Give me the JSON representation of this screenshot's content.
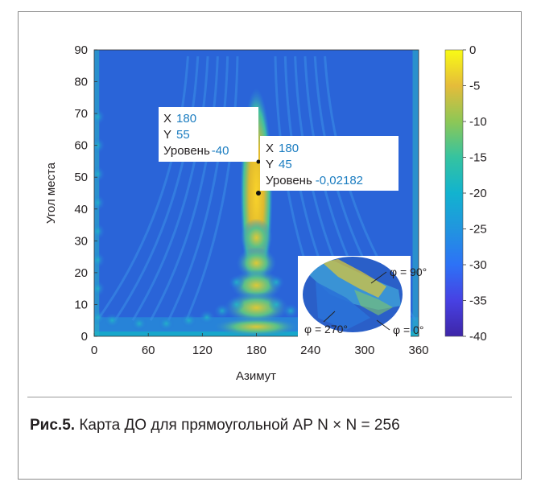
{
  "chart_data": {
    "type": "heatmap",
    "xlabel": "Азимут",
    "ylabel": "Угол места",
    "xlim": [
      0,
      360
    ],
    "ylim": [
      0,
      90
    ],
    "x_ticks": [
      0,
      60,
      120,
      180,
      240,
      300,
      360
    ],
    "y_ticks": [
      0,
      10,
      20,
      30,
      40,
      50,
      60,
      70,
      80,
      90
    ],
    "colorbar": {
      "range": [
        -40,
        0
      ],
      "ticks": [
        0,
        -5,
        -10,
        -15,
        -20,
        -25,
        -30,
        -35,
        -40
      ],
      "colormap": "parula"
    },
    "main_lobe": {
      "x": 180,
      "y": 45,
      "level": 0
    },
    "datatips": [
      {
        "x_key": "X",
        "x": "180",
        "y_key": "Y",
        "y": "55",
        "level_key": "Уровень",
        "level": "-40"
      },
      {
        "x_key": "X",
        "x": "180",
        "y_key": "Y",
        "y": "45",
        "level_key": "Уровень",
        "level": "-0,02182"
      }
    ],
    "inset_labels": [
      "φ = 90°",
      "φ = 270°",
      "φ = 0°"
    ]
  },
  "caption": {
    "bold": "Рис.5.",
    "text": " Карта ДО для прямоугольной АР N × N = 256"
  },
  "colors": {
    "low": "#3e26a8",
    "high": "#f9fb15",
    "datatip_value": "#1a7cc0"
  }
}
